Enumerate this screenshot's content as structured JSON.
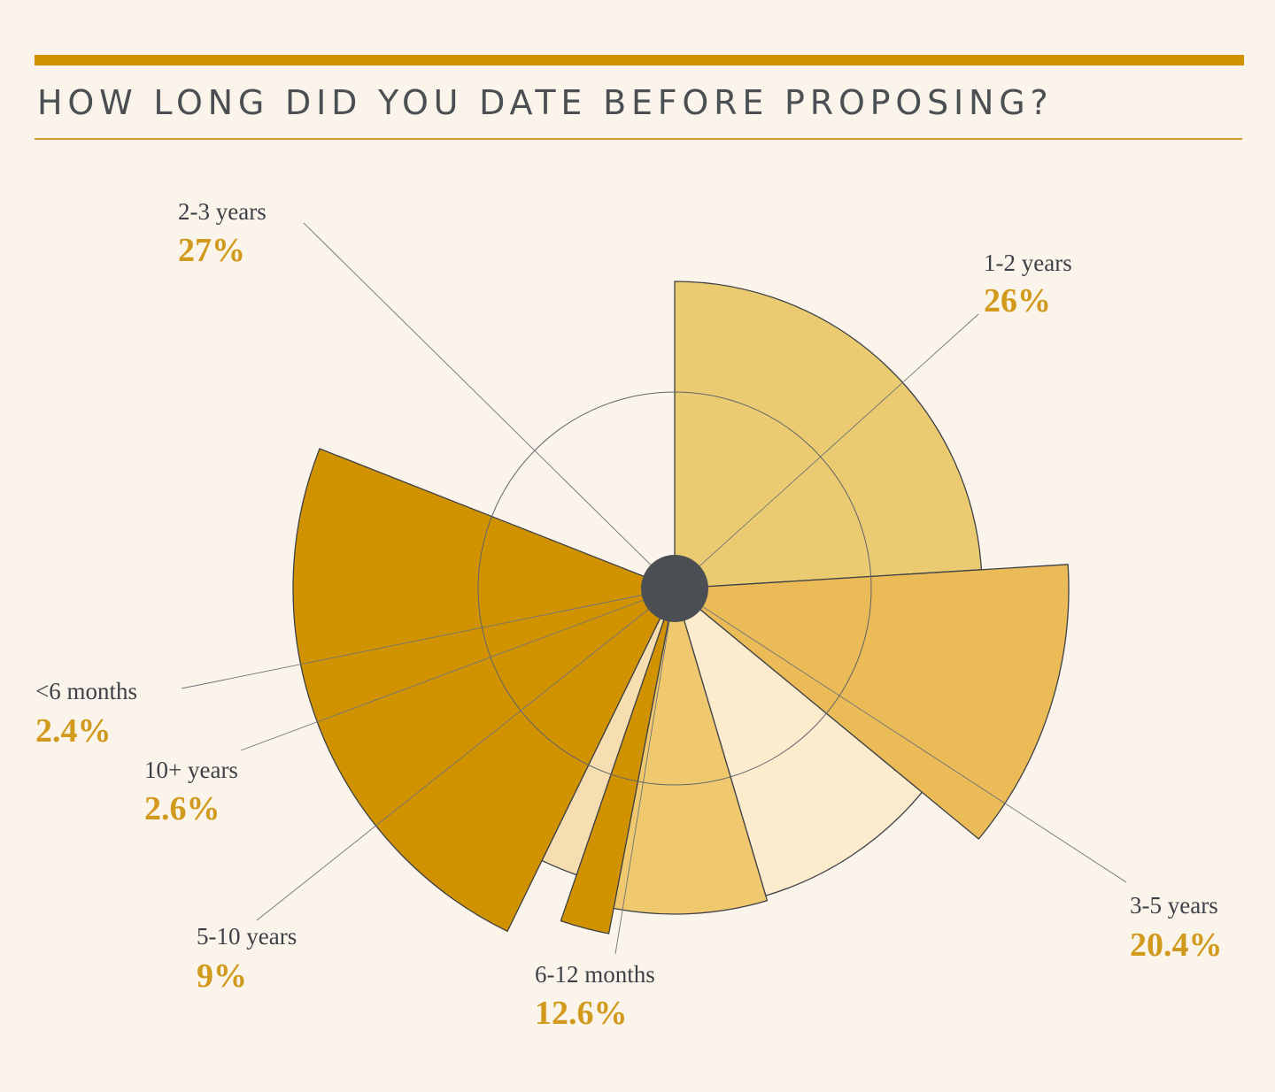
{
  "title": "HOW LONG DID YOU DATE BEFORE PROPOSING?",
  "colors": {
    "background": "#faf4ea",
    "accent": "#d19200",
    "label_value": "#d19a1c",
    "label_name": "#3d4147",
    "center_dot": "#4b4f54"
  },
  "chart_data": {
    "type": "pie",
    "variant": "polar-area",
    "categories": [
      "1-2 years",
      "3-5 years",
      "6-12 months",
      "5-10 years",
      "10+ years",
      "<6 months",
      "2-3 years"
    ],
    "values": [
      26,
      20.4,
      12.6,
      9,
      2.6,
      2.4,
      27
    ],
    "labels": [
      "26%",
      "20.4%",
      "12.6%",
      "9%",
      "2.6%",
      "2.4%",
      "27%"
    ],
    "slice_colors": [
      "#ebcb72",
      "#ebbb58",
      "#fcebcd",
      "#f0c96e",
      "#d19200",
      "#f6deb0",
      "#d19200"
    ]
  }
}
